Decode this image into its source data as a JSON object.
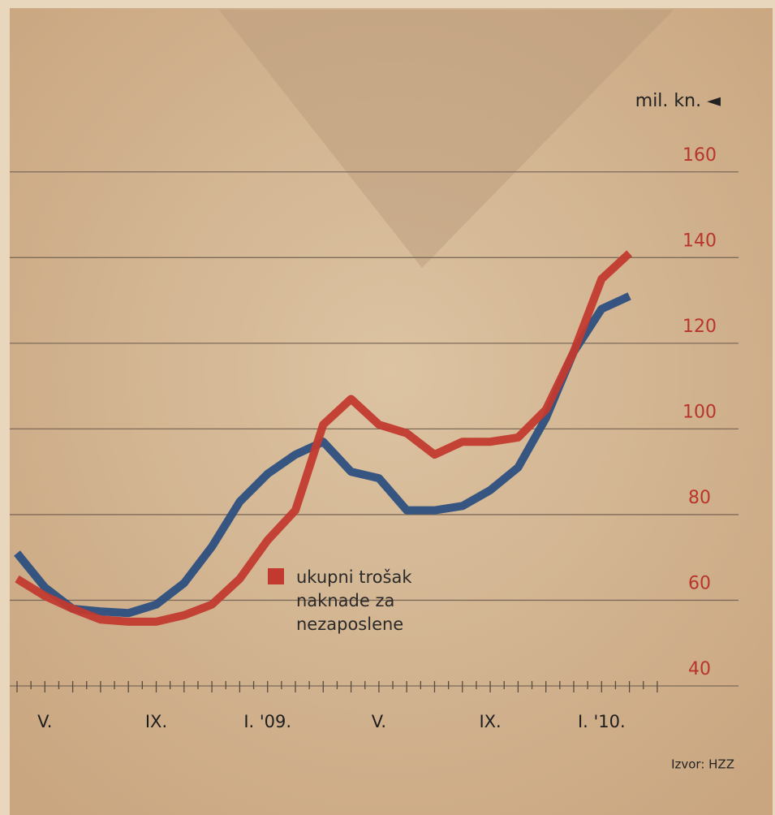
{
  "chart_data": {
    "type": "line",
    "unit_label": "mil. kn. ◄",
    "categories": [
      null,
      "V.",
      null,
      null,
      null,
      "IX.",
      null,
      null,
      null,
      "I. '09.",
      null,
      null,
      null,
      "V.",
      null,
      null,
      null,
      "IX.",
      null,
      null,
      null,
      "I. '10.",
      null
    ],
    "series": [
      {
        "name": "ukupni trošak naknade za nezaposlene",
        "color": "#c23a2f",
        "values": [
          65,
          61,
          58,
          55.5,
          55,
          55,
          56.5,
          59,
          65,
          74,
          81,
          101,
          107,
          101,
          99,
          94,
          97,
          97,
          98,
          104.5,
          118,
          135,
          141
        ]
      },
      {
        "color": "#2d4f7f",
        "values": [
          71,
          63,
          58,
          57.4,
          57,
          59,
          64,
          72.5,
          83,
          89.5,
          94,
          97,
          90,
          88.5,
          81,
          81,
          82,
          85.7,
          91,
          102.5,
          118,
          128,
          131
        ]
      }
    ],
    "ylim": [
      40,
      170
    ],
    "yticks": [
      40,
      60,
      80,
      100,
      120,
      140,
      160
    ],
    "ytick_color": "#b8352b",
    "grid": true,
    "source": "Izvor: HZZ"
  }
}
